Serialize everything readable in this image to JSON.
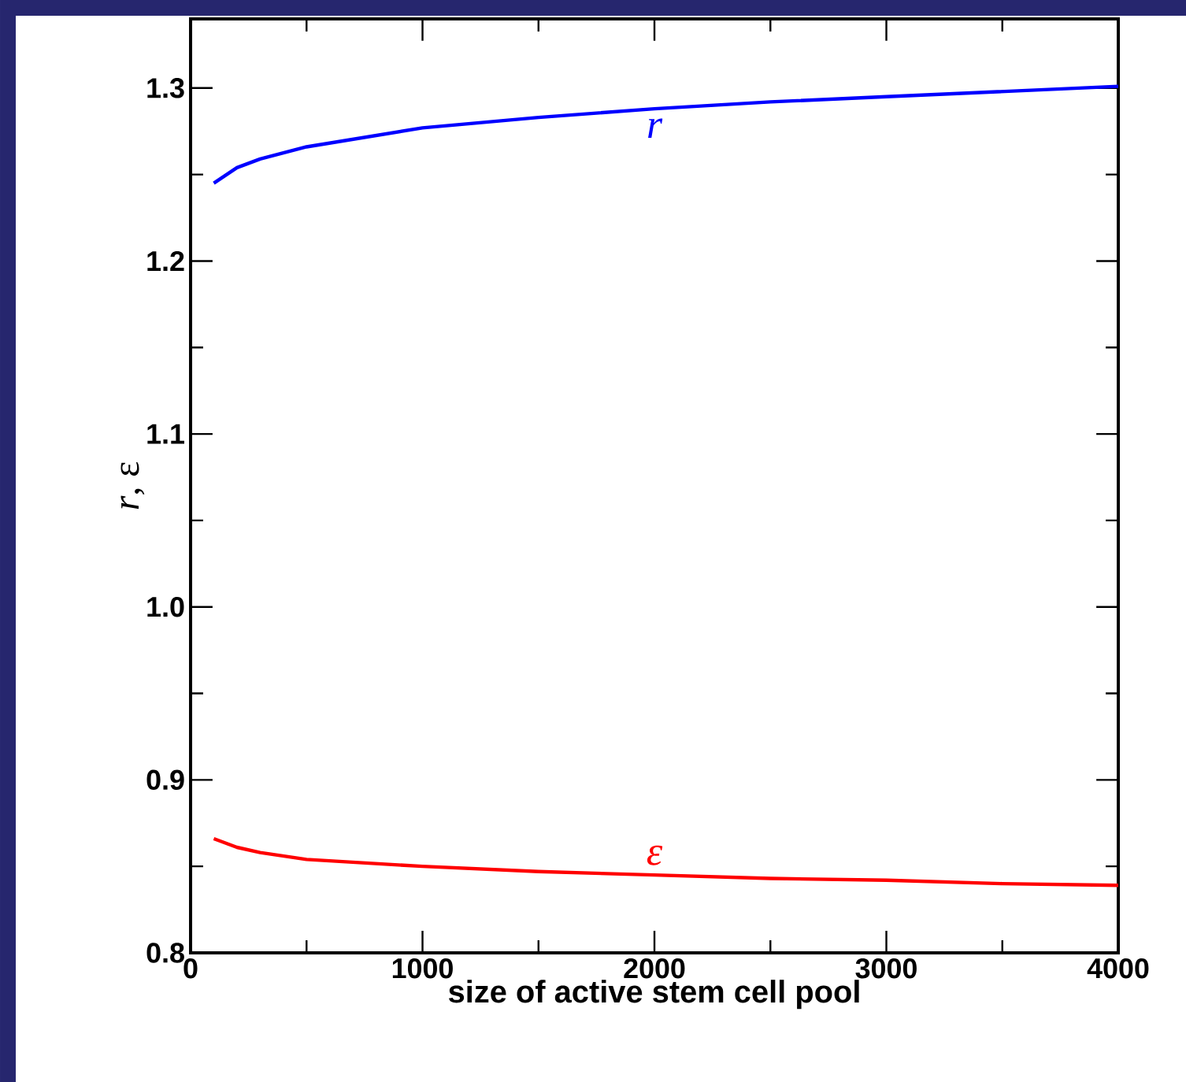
{
  "chart_data": {
    "type": "line",
    "xlabel": "size of active stem cell pool",
    "ylabel": "*r*, ε",
    "xlim": [
      0,
      4000
    ],
    "xticks": [
      0,
      1000,
      2000,
      3000,
      4000
    ],
    "ylim": [
      0.8,
      1.34
    ],
    "yticks": [
      {
        "value": 0.8,
        "label": "0.8"
      },
      {
        "value": 0.9,
        "label": "0.9"
      },
      {
        "value": 1.0,
        "label": "1.0"
      },
      {
        "value": 1.1,
        "label": "1.1"
      },
      {
        "value": 1.2,
        "label": "1.2"
      },
      {
        "value": 1.3,
        "label": "1.3"
      }
    ],
    "grid": false,
    "legend": false,
    "marker": "none",
    "line_style": "solid",
    "series": [
      {
        "name": "r",
        "color": "#0000ff",
        "x": [
          100,
          200,
          300,
          500,
          1000,
          1500,
          2000,
          2500,
          3000,
          3500,
          4000
        ],
        "values": [
          1.245,
          1.254,
          1.259,
          1.266,
          1.277,
          1.283,
          1.288,
          1.292,
          1.295,
          1.298,
          1.301
        ]
      },
      {
        "name": "ε",
        "color": "#ff0000",
        "x": [
          100,
          200,
          300,
          500,
          1000,
          1500,
          2000,
          2500,
          3000,
          3500,
          4000
        ],
        "values": [
          0.866,
          0.861,
          0.858,
          0.854,
          0.85,
          0.847,
          0.845,
          0.843,
          0.842,
          0.84,
          0.839
        ]
      }
    ]
  }
}
